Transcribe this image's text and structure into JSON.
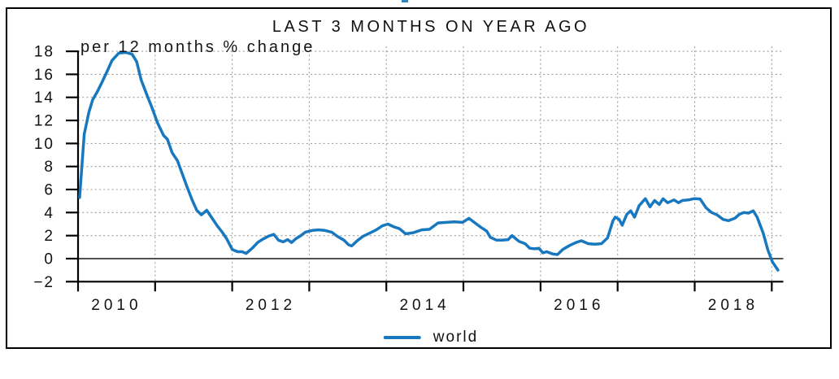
{
  "chart_data": {
    "type": "line",
    "title": "LAST 3 MONTHS ON YEAR AGO",
    "subtitle": "per 12 months % change",
    "xlim": [
      2010,
      2019.15
    ],
    "ylim": [
      -2,
      18
    ],
    "y_ticks": [
      -2,
      0,
      2,
      4,
      6,
      8,
      10,
      12,
      14,
      16,
      18
    ],
    "x_ticks": [
      2010,
      2011,
      2012,
      2013,
      2014,
      2015,
      2016,
      2017,
      2018,
      2019
    ],
    "x_tick_labels": [
      {
        "text": "2010",
        "pos": 2010.5
      },
      {
        "text": "2012",
        "pos": 2012.5
      },
      {
        "text": "2014",
        "pos": 2014.5
      },
      {
        "text": "2016",
        "pos": 2016.5
      },
      {
        "text": "2018",
        "pos": 2018.5
      }
    ],
    "grid": {
      "horizontal_at": [
        2,
        4,
        6,
        8,
        10,
        12,
        14,
        16,
        18
      ],
      "vertical_at": [
        2011,
        2012,
        2013,
        2014,
        2015,
        2016,
        2017,
        2018,
        2019
      ],
      "zero_line": true
    },
    "legend_position": "bottom-center",
    "series": [
      {
        "name": "world",
        "color": "#1878bf",
        "points": [
          [
            2010.02,
            5.3
          ],
          [
            2010.08,
            10.8
          ],
          [
            2010.14,
            12.7
          ],
          [
            2010.19,
            13.8
          ],
          [
            2010.25,
            14.5
          ],
          [
            2010.31,
            15.3
          ],
          [
            2010.38,
            16.3
          ],
          [
            2010.44,
            17.2
          ],
          [
            2010.53,
            17.85
          ],
          [
            2010.62,
            17.9
          ],
          [
            2010.7,
            17.75
          ],
          [
            2010.76,
            17.1
          ],
          [
            2010.82,
            15.5
          ],
          [
            2010.9,
            14.1
          ],
          [
            2010.96,
            13.1
          ],
          [
            2011.03,
            11.8
          ],
          [
            2011.11,
            10.7
          ],
          [
            2011.16,
            10.35
          ],
          [
            2011.22,
            9.2
          ],
          [
            2011.29,
            8.5
          ],
          [
            2011.35,
            7.4
          ],
          [
            2011.41,
            6.3
          ],
          [
            2011.48,
            5.1
          ],
          [
            2011.54,
            4.2
          ],
          [
            2011.6,
            3.8
          ],
          [
            2011.67,
            4.2
          ],
          [
            2011.73,
            3.6
          ],
          [
            2011.8,
            2.9
          ],
          [
            2011.87,
            2.3
          ],
          [
            2011.93,
            1.7
          ],
          [
            2012.0,
            0.8
          ],
          [
            2012.07,
            0.6
          ],
          [
            2012.13,
            0.6
          ],
          [
            2012.18,
            0.45
          ],
          [
            2012.26,
            0.9
          ],
          [
            2012.33,
            1.4
          ],
          [
            2012.4,
            1.7
          ],
          [
            2012.47,
            1.95
          ],
          [
            2012.54,
            2.1
          ],
          [
            2012.6,
            1.6
          ],
          [
            2012.66,
            1.45
          ],
          [
            2012.72,
            1.65
          ],
          [
            2012.77,
            1.4
          ],
          [
            2012.83,
            1.75
          ],
          [
            2012.89,
            2.0
          ],
          [
            2012.95,
            2.3
          ],
          [
            2013.04,
            2.45
          ],
          [
            2013.12,
            2.5
          ],
          [
            2013.2,
            2.45
          ],
          [
            2013.29,
            2.3
          ],
          [
            2013.36,
            1.95
          ],
          [
            2013.45,
            1.6
          ],
          [
            2013.51,
            1.2
          ],
          [
            2013.55,
            1.1
          ],
          [
            2013.63,
            1.6
          ],
          [
            2013.7,
            1.95
          ],
          [
            2013.78,
            2.2
          ],
          [
            2013.87,
            2.5
          ],
          [
            2013.95,
            2.85
          ],
          [
            2014.02,
            3.0
          ],
          [
            2014.1,
            2.75
          ],
          [
            2014.17,
            2.6
          ],
          [
            2014.25,
            2.15
          ],
          [
            2014.35,
            2.25
          ],
          [
            2014.46,
            2.5
          ],
          [
            2014.56,
            2.55
          ],
          [
            2014.67,
            3.1
          ],
          [
            2014.78,
            3.15
          ],
          [
            2014.88,
            3.2
          ],
          [
            2014.99,
            3.15
          ],
          [
            2015.07,
            3.5
          ],
          [
            2015.17,
            3.0
          ],
          [
            2015.23,
            2.7
          ],
          [
            2015.3,
            2.4
          ],
          [
            2015.35,
            1.85
          ],
          [
            2015.43,
            1.6
          ],
          [
            2015.51,
            1.6
          ],
          [
            2015.58,
            1.65
          ],
          [
            2015.63,
            2.0
          ],
          [
            2015.72,
            1.5
          ],
          [
            2015.8,
            1.3
          ],
          [
            2015.86,
            0.9
          ],
          [
            2015.92,
            0.85
          ],
          [
            2015.98,
            0.9
          ],
          [
            2016.03,
            0.5
          ],
          [
            2016.08,
            0.6
          ],
          [
            2016.16,
            0.4
          ],
          [
            2016.22,
            0.35
          ],
          [
            2016.29,
            0.8
          ],
          [
            2016.38,
            1.15
          ],
          [
            2016.46,
            1.4
          ],
          [
            2016.53,
            1.55
          ],
          [
            2016.62,
            1.3
          ],
          [
            2016.7,
            1.25
          ],
          [
            2016.79,
            1.3
          ],
          [
            2016.87,
            1.8
          ],
          [
            2016.94,
            3.3
          ],
          [
            2016.97,
            3.6
          ],
          [
            2017.02,
            3.4
          ],
          [
            2017.06,
            2.9
          ],
          [
            2017.12,
            3.85
          ],
          [
            2017.17,
            4.15
          ],
          [
            2017.22,
            3.6
          ],
          [
            2017.28,
            4.6
          ],
          [
            2017.36,
            5.2
          ],
          [
            2017.42,
            4.5
          ],
          [
            2017.48,
            5.05
          ],
          [
            2017.54,
            4.7
          ],
          [
            2017.59,
            5.2
          ],
          [
            2017.65,
            4.85
          ],
          [
            2017.73,
            5.1
          ],
          [
            2017.79,
            4.85
          ],
          [
            2017.84,
            5.05
          ],
          [
            2017.92,
            5.1
          ],
          [
            2017.99,
            5.2
          ],
          [
            2018.07,
            5.18
          ],
          [
            2018.15,
            4.4
          ],
          [
            2018.22,
            4.0
          ],
          [
            2018.29,
            3.8
          ],
          [
            2018.37,
            3.4
          ],
          [
            2018.44,
            3.3
          ],
          [
            2018.52,
            3.5
          ],
          [
            2018.58,
            3.85
          ],
          [
            2018.64,
            4.0
          ],
          [
            2018.7,
            3.95
          ],
          [
            2018.76,
            4.15
          ],
          [
            2018.81,
            3.6
          ],
          [
            2018.89,
            2.2
          ],
          [
            2018.95,
            0.75
          ],
          [
            2019.01,
            -0.3
          ],
          [
            2019.08,
            -1.0
          ]
        ]
      }
    ]
  },
  "colors": {
    "line": "#1878bf",
    "grid": "#9e9e9e",
    "zero_line": "#3a3a3a",
    "axis": "#000000",
    "text": "#111111",
    "frame_border": "#000000",
    "stray_mark": "#2a86c8"
  }
}
